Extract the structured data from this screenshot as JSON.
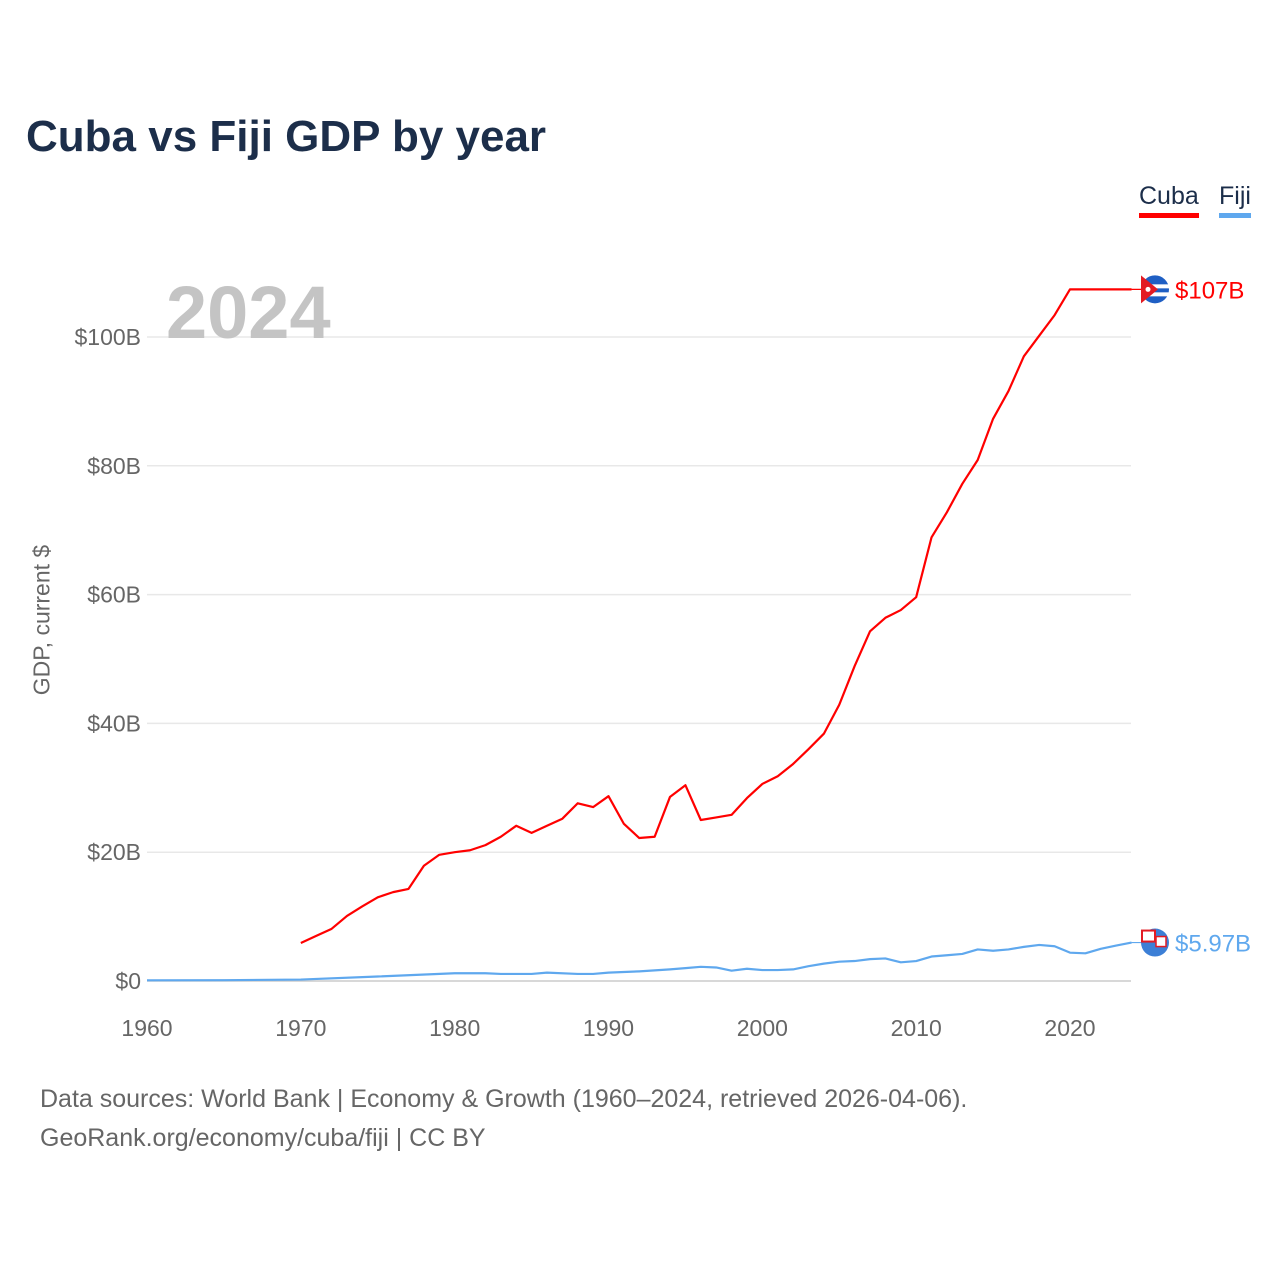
{
  "title": "Cuba vs Fiji GDP by year",
  "year_label": "2024",
  "colors": {
    "Cuba": "#ff0000",
    "Fiji": "#5fa8ee"
  },
  "source_line1": "Data sources: World Bank | Economy & Growth (1960–2024, retrieved 2026-04-06).",
  "source_line2": "GeoRank.org/economy/cuba/fiji | CC BY",
  "chart_data": {
    "type": "line",
    "title": "Cuba vs Fiji GDP by year",
    "xlabel": "",
    "ylabel": "GDP, current $",
    "xlim": [
      1960,
      2024
    ],
    "ylim": [
      0,
      110
    ],
    "x_ticks": [
      1960,
      1970,
      1980,
      1990,
      2000,
      2010,
      2020
    ],
    "y_ticks": [
      0,
      20,
      40,
      60,
      80,
      100
    ],
    "y_tick_labels": [
      "$0",
      "$20B",
      "$40B",
      "$60B",
      "$80B",
      "$100B"
    ],
    "grid": true,
    "legend": {
      "placement": "top-right",
      "entries": [
        "Cuba",
        "Fiji"
      ]
    },
    "series": [
      {
        "name": "Cuba",
        "end_label": "$107B",
        "x": [
          1970,
          1971,
          1972,
          1973,
          1974,
          1975,
          1976,
          1977,
          1978,
          1979,
          1980,
          1981,
          1982,
          1983,
          1984,
          1985,
          1986,
          1987,
          1988,
          1989,
          1990,
          1991,
          1992,
          1993,
          1994,
          1995,
          1996,
          1997,
          1998,
          1999,
          2000,
          2001,
          2002,
          2003,
          2004,
          2005,
          2006,
          2007,
          2008,
          2009,
          2010,
          2011,
          2012,
          2013,
          2014,
          2015,
          2016,
          2017,
          2018,
          2019,
          2020,
          2024
        ],
        "values": [
          5.9,
          7.0,
          8.1,
          10.1,
          11.6,
          13.0,
          13.8,
          14.3,
          17.9,
          19.6,
          20.0,
          20.3,
          21.1,
          22.4,
          24.1,
          23.0,
          24.1,
          25.2,
          27.6,
          27.0,
          28.7,
          24.4,
          22.2,
          22.4,
          28.6,
          30.4,
          25.0,
          25.4,
          25.8,
          28.4,
          30.6,
          31.8,
          33.7,
          36.0,
          38.4,
          42.9,
          48.9,
          54.3,
          56.4,
          57.6,
          59.6,
          68.9,
          72.8,
          77.2,
          80.9,
          87.3,
          91.6,
          97.0,
          100.2,
          103.4,
          107.4,
          107.4
        ]
      },
      {
        "name": "Fiji",
        "end_label": "$5.97B",
        "x": [
          1960,
          1965,
          1970,
          1975,
          1980,
          1982,
          1983,
          1985,
          1986,
          1988,
          1989,
          1990,
          1992,
          1994,
          1995,
          1996,
          1997,
          1998,
          1999,
          2000,
          2001,
          2002,
          2003,
          2004,
          2005,
          2006,
          2007,
          2008,
          2009,
          2010,
          2011,
          2012,
          2013,
          2014,
          2015,
          2016,
          2017,
          2018,
          2019,
          2020,
          2021,
          2022,
          2023,
          2024
        ],
        "values": [
          0.11,
          0.13,
          0.22,
          0.7,
          1.2,
          1.2,
          1.1,
          1.1,
          1.3,
          1.1,
          1.1,
          1.3,
          1.5,
          1.8,
          2.0,
          2.2,
          2.1,
          1.6,
          1.9,
          1.7,
          1.7,
          1.8,
          2.3,
          2.7,
          3.0,
          3.1,
          3.4,
          3.5,
          2.9,
          3.1,
          3.8,
          4.0,
          4.2,
          4.9,
          4.7,
          4.9,
          5.3,
          5.6,
          5.4,
          4.4,
          4.3,
          5.0,
          5.5,
          5.97
        ]
      }
    ]
  }
}
